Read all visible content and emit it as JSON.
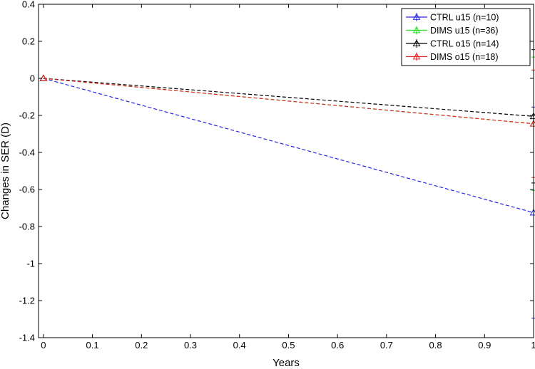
{
  "chart_data": {
    "type": "line",
    "title": "",
    "xlabel": "Years",
    "ylabel": "Changes in SER (D)",
    "xlim": [
      -0.01,
      1.0
    ],
    "ylim": [
      -1.4,
      0.4
    ],
    "xticks": [
      0,
      0.1,
      0.2,
      0.3,
      0.4,
      0.5,
      0.6,
      0.7,
      0.8,
      0.9,
      1
    ],
    "xtick_labels": [
      "0",
      "0.1",
      "0.2",
      "0.3",
      "0.4",
      "0.5",
      "0.6",
      "0.7",
      "0.8",
      "0.9",
      "1"
    ],
    "yticks": [
      0.4,
      0.2,
      0,
      -0.2,
      -0.4,
      -0.6,
      -0.8,
      -1,
      -1.2,
      -1.4
    ],
    "ytick_labels": [
      "0.4",
      "0.2",
      "0",
      "-0.2",
      "-0.4",
      "-0.6",
      "-0.8",
      "-1",
      "-1.2",
      "-1.4"
    ],
    "grid": false,
    "legend_position": "top-right",
    "series": [
      {
        "name": "CTRL u15 (n=10)",
        "color": "#2626e6",
        "x": [
          0,
          1
        ],
        "y": [
          0,
          -0.725
        ],
        "err": [
          0,
          0.57
        ]
      },
      {
        "name": "DIMS u15 (n=36)",
        "color": "#22dd22",
        "x": [
          0,
          1
        ],
        "y": [
          0,
          -0.245
        ],
        "err": [
          0,
          0.36
        ]
      },
      {
        "name": "CTRL o15 (n=14)",
        "color": "#000000",
        "x": [
          0,
          1
        ],
        "y": [
          0,
          -0.205
        ],
        "err": [
          0,
          0.36
        ]
      },
      {
        "name": "DIMS o15 (n=18)",
        "color": "#e62626",
        "x": [
          0,
          1
        ],
        "y": [
          0,
          -0.245
        ],
        "err": [
          0,
          0.29
        ]
      }
    ]
  }
}
